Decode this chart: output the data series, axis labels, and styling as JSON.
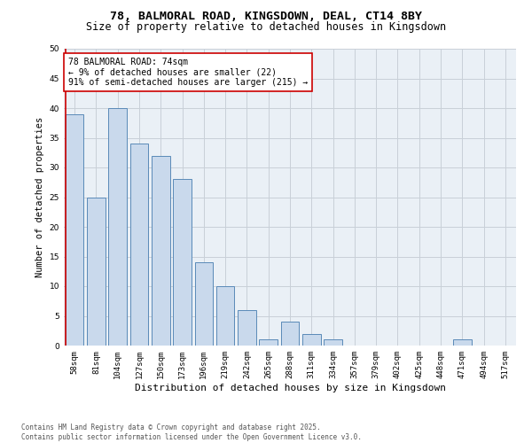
{
  "title1": "78, BALMORAL ROAD, KINGSDOWN, DEAL, CT14 8BY",
  "title2": "Size of property relative to detached houses in Kingsdown",
  "xlabel": "Distribution of detached houses by size in Kingsdown",
  "ylabel": "Number of detached properties",
  "categories": [
    "58sqm",
    "81sqm",
    "104sqm",
    "127sqm",
    "150sqm",
    "173sqm",
    "196sqm",
    "219sqm",
    "242sqm",
    "265sqm",
    "288sqm",
    "311sqm",
    "334sqm",
    "357sqm",
    "379sqm",
    "402sqm",
    "425sqm",
    "448sqm",
    "471sqm",
    "494sqm",
    "517sqm"
  ],
  "values": [
    39,
    25,
    40,
    34,
    32,
    28,
    14,
    10,
    6,
    1,
    4,
    2,
    1,
    0,
    0,
    0,
    0,
    0,
    1,
    0,
    0
  ],
  "bar_color": "#c9d9ec",
  "bar_edgecolor": "#5a8ab8",
  "highlight_line_color": "#cc0000",
  "annotation_text": "78 BALMORAL ROAD: 74sqm\n← 9% of detached houses are smaller (22)\n91% of semi-detached houses are larger (215) →",
  "annotation_box_color": "#ffffff",
  "annotation_box_edgecolor": "#cc0000",
  "ylim": [
    0,
    50
  ],
  "yticks": [
    0,
    5,
    10,
    15,
    20,
    25,
    30,
    35,
    40,
    45,
    50
  ],
  "grid_color": "#c8d0d8",
  "bg_color": "#eaf0f6",
  "footnote": "Contains HM Land Registry data © Crown copyright and database right 2025.\nContains public sector information licensed under the Open Government Licence v3.0.",
  "title1_fontsize": 9.5,
  "title2_fontsize": 8.5,
  "xlabel_fontsize": 8,
  "ylabel_fontsize": 7.5,
  "tick_fontsize": 6.5,
  "annotation_fontsize": 7,
  "footnote_fontsize": 5.5
}
